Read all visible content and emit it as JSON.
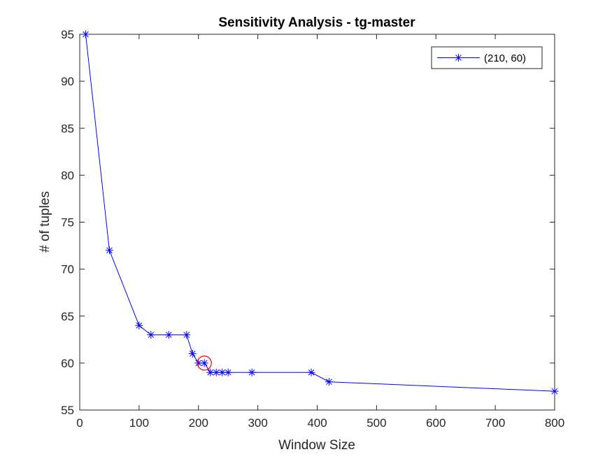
{
  "chart_data": {
    "type": "line",
    "title": "Sensitivity Analysis - tg-master",
    "xlabel": "Window Size",
    "ylabel": "# of tuples",
    "xlim": [
      0,
      800
    ],
    "ylim": [
      55,
      95
    ],
    "xticks": [
      0,
      100,
      200,
      300,
      400,
      500,
      600,
      700,
      800
    ],
    "yticks": [
      55,
      60,
      65,
      70,
      75,
      80,
      85,
      90,
      95
    ],
    "grid": false,
    "legend_position": "top-right",
    "series": [
      {
        "name": "(210, 60)",
        "color": "#0000ff",
        "marker": "asterisk",
        "x": [
          10,
          50,
          100,
          120,
          150,
          180,
          190,
          200,
          210,
          220,
          230,
          240,
          250,
          290,
          390,
          420,
          800
        ],
        "y": [
          95,
          72,
          64,
          63,
          63,
          63,
          61,
          60,
          60,
          59,
          59,
          59,
          59,
          59,
          59,
          58,
          57
        ]
      }
    ],
    "highlight": {
      "x": 210,
      "y": 60,
      "color": "#ff0000",
      "shape": "circle"
    }
  }
}
